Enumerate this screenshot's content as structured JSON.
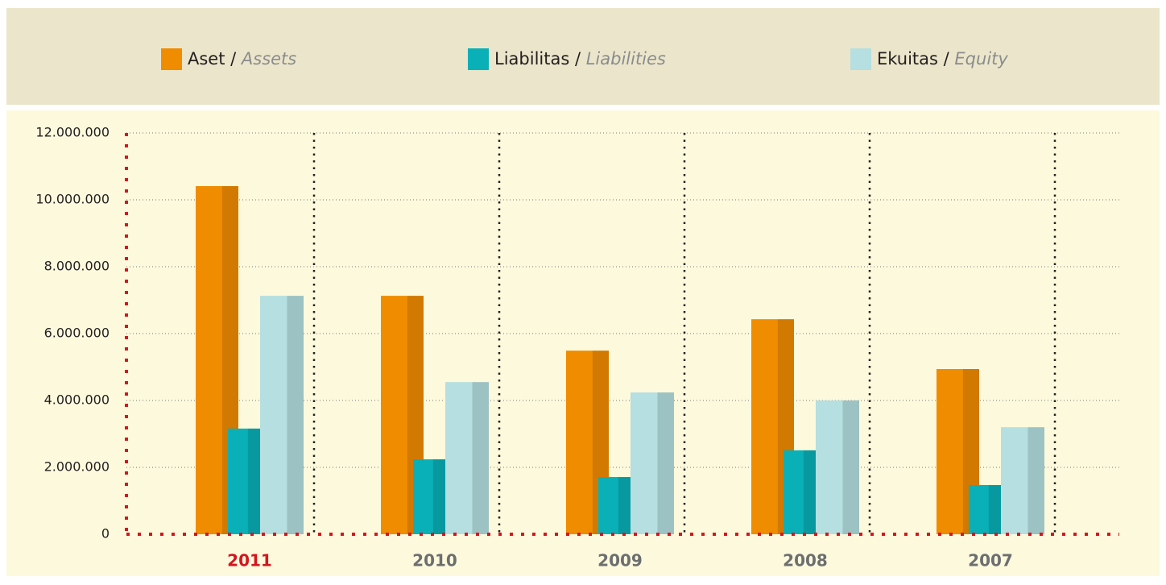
{
  "chart_data": {
    "type": "bar",
    "categories": [
      "2011",
      "2010",
      "2009",
      "2008",
      "2007"
    ],
    "category_color": "#6d6e70",
    "highlight": 0,
    "highlight_color": "#d7141f",
    "series": [
      {
        "name": "Aset / Assets",
        "color": "#f08c00",
        "values": [
          10410000,
          7130000,
          5490000,
          6430000,
          4940000
        ]
      },
      {
        "name": "Liabilitas / Liabilities",
        "color": "#0ab0b8",
        "values": [
          3160000,
          2240000,
          1710000,
          2510000,
          1470000
        ]
      },
      {
        "name": "Ekuitas / Equity",
        "color": "#b5dfe0",
        "values": [
          7130000,
          4550000,
          4240000,
          4000000,
          3200000
        ]
      }
    ],
    "ylim": [
      0,
      12000000
    ],
    "yticks": [
      0,
      {
        "value": 2000000,
        "label": "2.000.000"
      },
      {
        "value": 4000000,
        "label": "4.000.000"
      },
      {
        "value": 6000000,
        "label": "6.000.000"
      },
      {
        "value": 8000000,
        "label": "8.000.000"
      },
      {
        "value": 10000000,
        "label": "10.000.000"
      },
      {
        "value": 12000000,
        "label": "12.000.000"
      }
    ],
    "grid": true
  }
}
